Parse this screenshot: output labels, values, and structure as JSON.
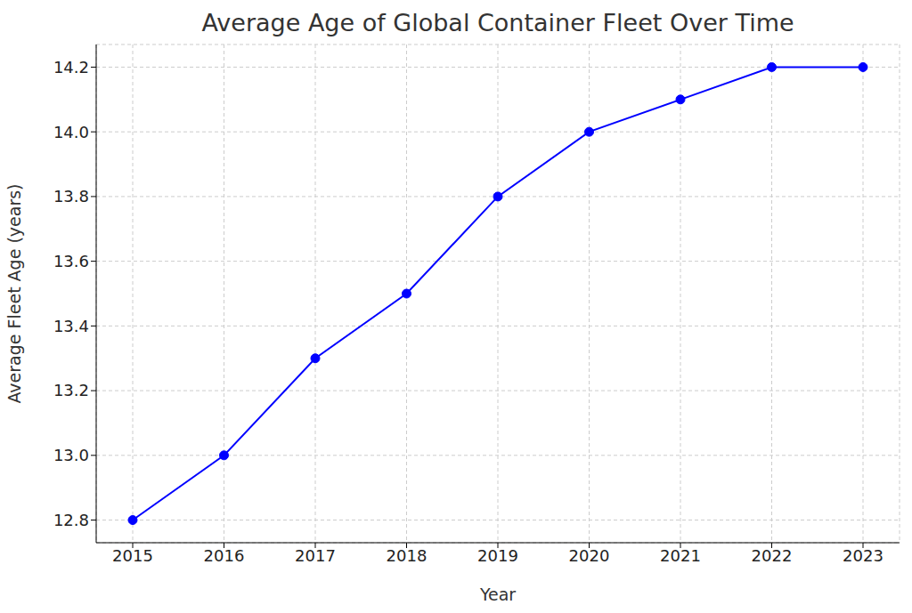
{
  "chart_data": {
    "type": "line",
    "title": "Average Age of Global Container Fleet Over Time",
    "x_label": "Year",
    "y_label": "Average Fleet Age (years)",
    "x": [
      2015,
      2016,
      2017,
      2018,
      2019,
      2020,
      2021,
      2022,
      2023
    ],
    "values": [
      12.8,
      13.0,
      13.3,
      13.5,
      13.8,
      14.0,
      14.1,
      14.2,
      14.2
    ],
    "color": "#0000ff",
    "marker": "circle",
    "line_style": "solid",
    "xlim": [
      2014.6,
      2023.4
    ],
    "xticks": [
      2015,
      2016,
      2017,
      2018,
      2019,
      2020,
      2021,
      2022,
      2023
    ],
    "ylim": [
      12.73,
      14.27
    ],
    "yticks": [
      {
        "value": 12.8,
        "label": "12.8"
      },
      {
        "value": 13,
        "label": "13.0"
      },
      13.2,
      13.4,
      13.6,
      13.8,
      {
        "value": 14,
        "label": "14.0"
      },
      14.2
    ],
    "grid": true
  }
}
